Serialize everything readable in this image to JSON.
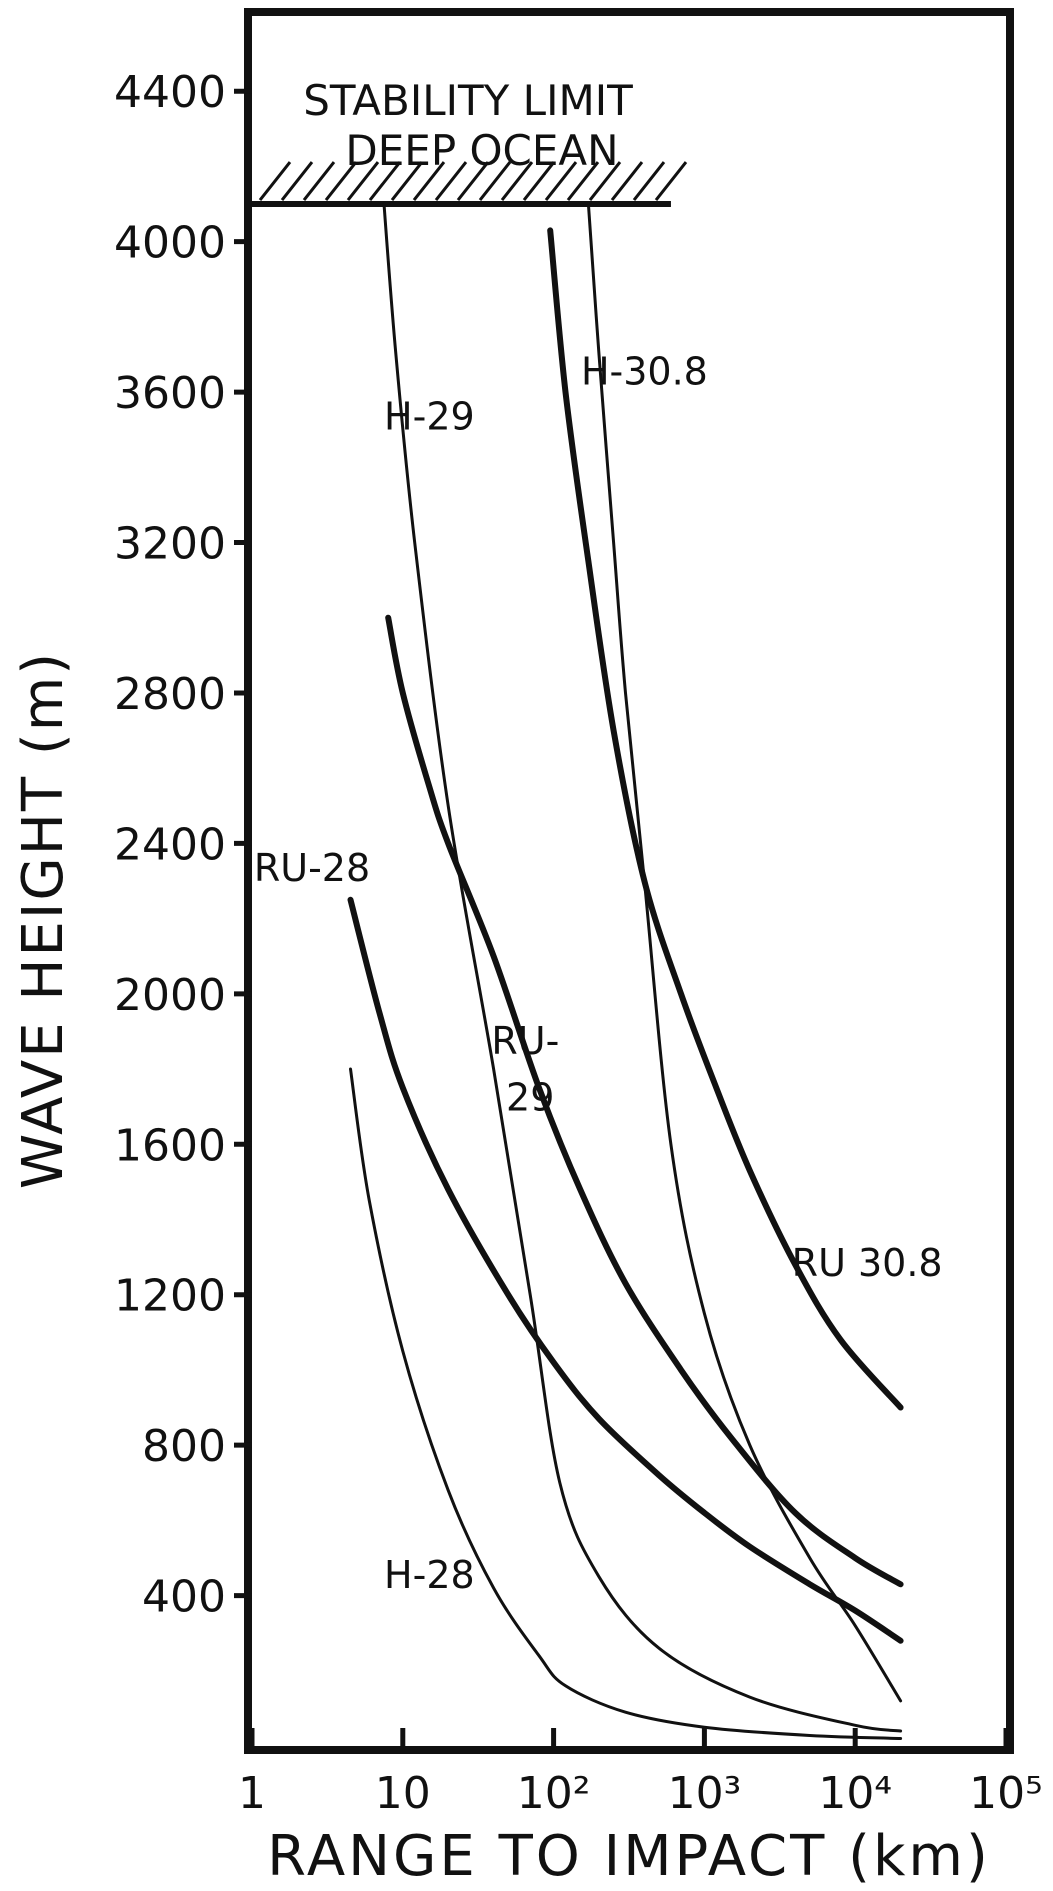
{
  "chart_data": {
    "type": "line",
    "xlabel": "RANGE TO IMPACT (km)",
    "ylabel": "WAVE HEIGHT (m)",
    "x_scale": "log",
    "xlim": [
      1,
      100000
    ],
    "ylim": [
      0,
      4600
    ],
    "x_ticks": [
      "1",
      "10",
      "10²",
      "10³",
      "10⁴",
      "10⁵"
    ],
    "y_ticks": [
      "400",
      "800",
      "1200",
      "1600",
      "2000",
      "2400",
      "2800",
      "3200",
      "3600",
      "4000",
      "4400"
    ],
    "grid": false,
    "annotations": {
      "stability_limit": {
        "line1": "STABILITY LIMIT",
        "line2": "DEEP OCEAN",
        "wave_height": 4100,
        "x_range": [
          1,
          600
        ]
      }
    },
    "series": [
      {
        "name": "H-28",
        "weight": "thin",
        "x": [
          4.5,
          6,
          10,
          20,
          40,
          80,
          120,
          300,
          1000,
          5000,
          20000
        ],
        "y": [
          1800,
          1450,
          1050,
          680,
          420,
          240,
          160,
          90,
          50,
          28,
          20
        ]
      },
      {
        "name": "H-29",
        "weight": "thin",
        "x": [
          7.5,
          9,
          12,
          20,
          40,
          70,
          110,
          200,
          500,
          2000,
          10000,
          20000
        ],
        "y": [
          4100,
          3700,
          3200,
          2500,
          1800,
          1200,
          700,
          450,
          260,
          130,
          55,
          40
        ]
      },
      {
        "name": "H-30.8",
        "weight": "thin",
        "x": [
          170,
          200,
          250,
          300,
          400,
          600,
          1000,
          2000,
          5000,
          10000,
          20000
        ],
        "y": [
          4100,
          3700,
          3200,
          2800,
          2300,
          1600,
          1150,
          800,
          500,
          320,
          120
        ]
      },
      {
        "name": "RU-28",
        "weight": "thick",
        "x": [
          4.5,
          7,
          10,
          20,
          50,
          100,
          200,
          500,
          1000,
          2000,
          5000,
          10000,
          20000
        ],
        "y": [
          2250,
          1950,
          1750,
          1480,
          1200,
          1020,
          870,
          720,
          620,
          530,
          430,
          360,
          280
        ]
      },
      {
        "name": "RU-29",
        "weight": "thick",
        "x": [
          8,
          10,
          15,
          20,
          40,
          80,
          150,
          300,
          700,
          1500,
          4000,
          10000,
          20000
        ],
        "y": [
          3000,
          2800,
          2550,
          2400,
          2100,
          1750,
          1480,
          1230,
          1000,
          820,
          620,
          500,
          430
        ]
      },
      {
        "name": "RU 30.8",
        "weight": "thick",
        "x": [
          95,
          120,
          170,
          250,
          400,
          700,
          1200,
          2000,
          4000,
          8000,
          20000
        ],
        "y": [
          4030,
          3600,
          3150,
          2700,
          2300,
          2000,
          1750,
          1530,
          1280,
          1080,
          900
        ]
      }
    ],
    "curve_labels": [
      {
        "text": "H-28",
        "x": 15,
        "y": 420
      },
      {
        "text": "H-29",
        "x": 15,
        "y": 3500
      },
      {
        "text": "H-30.8",
        "x": 400,
        "y": 3620
      },
      {
        "text": "RU-28",
        "x": 2.5,
        "y": 2300
      },
      {
        "text": "RU-",
        "x": 65,
        "y": 1840
      },
      {
        "text": "29",
        "x": 70,
        "y": 1690
      },
      {
        "text": "RU 30.8",
        "x": 12000,
        "y": 1250
      }
    ]
  }
}
